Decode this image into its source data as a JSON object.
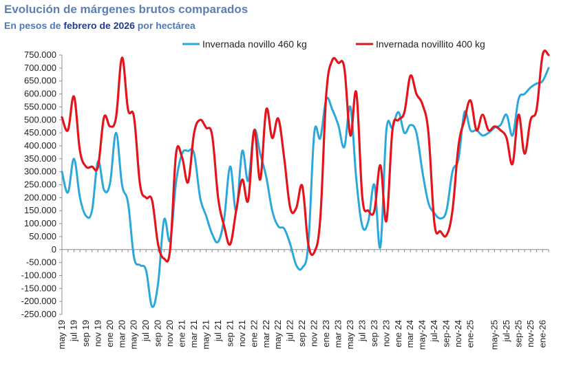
{
  "header": {
    "title": "Evolución de márgenes brutos comparados",
    "subtitle_prefix": "En pesos de ",
    "subtitle_emph": "febrero de 2026",
    "subtitle_suffix": " por hectárea"
  },
  "colors": {
    "novillo": "#2aa8dc",
    "novillito": "#e3141b",
    "axis": "#8c8c8c"
  },
  "chart_data": {
    "type": "line",
    "title": "Evolución de márgenes brutos comparados",
    "subtitle": "En pesos de febrero de 2026 por hectárea",
    "ylim": [
      -250000,
      750000
    ],
    "ytick_step": 50000,
    "yticks_labels": [
      "750.000",
      "700.000",
      "650.000",
      "600.000",
      "550.000",
      "500.000",
      "450.000",
      "400.000",
      "350.000",
      "300.000",
      "250.000",
      "200.000",
      "150.000",
      "100.000",
      "50.000",
      "0",
      "-50.000",
      "-100.000",
      "-150.000",
      "-200.000",
      "-250.000"
    ],
    "n_months": 82,
    "xtick_labels": [
      "may 19",
      "jul 19",
      "sep 19",
      "nov 19",
      "ene 20",
      "mar 20",
      "may 20",
      "jul 20",
      "sep 20",
      "nov 20",
      "ene 21",
      "mar 21",
      "may 21",
      "jul 21",
      "sep 21",
      "nov 21",
      "ene 22",
      "mar 22",
      "may 22",
      "jul 22",
      "sep 22",
      "nov 22",
      "ene 23",
      "mar 23",
      "may 23",
      "jul 23",
      "sep 23",
      "nov 23",
      "ene 24",
      "mar 24",
      "may-24",
      "jul-24",
      "sep-24",
      "nov-24",
      "ene-25",
      "may-25",
      "jul-25",
      "sep-25",
      "nov-25",
      "ene-26"
    ],
    "xtick_months": [
      0,
      2,
      4,
      6,
      8,
      10,
      12,
      14,
      16,
      18,
      20,
      22,
      24,
      26,
      28,
      30,
      32,
      34,
      36,
      38,
      40,
      42,
      44,
      46,
      48,
      50,
      52,
      54,
      56,
      58,
      60,
      62,
      64,
      66,
      68,
      72,
      74,
      76,
      78,
      80
    ],
    "series": [
      {
        "name": "Invernada novillo 460 kg",
        "values": [
          300000,
          220000,
          350000,
          200000,
          130000,
          150000,
          340000,
          230000,
          255000,
          450000,
          250000,
          180000,
          -30000,
          -60000,
          -80000,
          -220000,
          -130000,
          115000,
          35000,
          260000,
          370000,
          380000,
          370000,
          200000,
          130000,
          60000,
          30000,
          120000,
          320000,
          150000,
          380000,
          265000,
          460000,
          370000,
          280000,
          150000,
          90000,
          80000,
          20000,
          -60000,
          -70000,
          20000,
          450000,
          430000,
          580000,
          540000,
          480000,
          395000,
          550000,
          270000,
          90000,
          110000,
          250000,
          10000,
          460000,
          470000,
          530000,
          450000,
          480000,
          450000,
          300000,
          180000,
          140000,
          120000,
          150000,
          300000,
          350000,
          530000,
          460000,
          460000,
          440000,
          450000,
          470000,
          480000,
          520000,
          440000,
          580000,
          600000,
          625000,
          640000,
          650000,
          700000
        ]
      },
      {
        "name": "Invernada novillito 400 kg",
        "values": [
          510000,
          460000,
          590000,
          380000,
          320000,
          320000,
          320000,
          510000,
          475000,
          510000,
          740000,
          540000,
          510000,
          250000,
          200000,
          190000,
          20000,
          -35000,
          0,
          370000,
          355000,
          260000,
          450000,
          500000,
          470000,
          440000,
          200000,
          90000,
          20000,
          150000,
          270000,
          190000,
          460000,
          270000,
          540000,
          430000,
          505000,
          350000,
          160000,
          160000,
          245000,
          20000,
          -10000,
          120000,
          600000,
          730000,
          720000,
          700000,
          440000,
          605000,
          200000,
          150000,
          150000,
          325000,
          110000,
          460000,
          500000,
          530000,
          670000,
          600000,
          560000,
          450000,
          100000,
          70000,
          55000,
          150000,
          400000,
          500000,
          575000,
          460000,
          520000,
          460000,
          475000,
          460000,
          430000,
          330000,
          520000,
          370000,
          500000,
          540000,
          750000,
          750000
        ]
      }
    ]
  }
}
